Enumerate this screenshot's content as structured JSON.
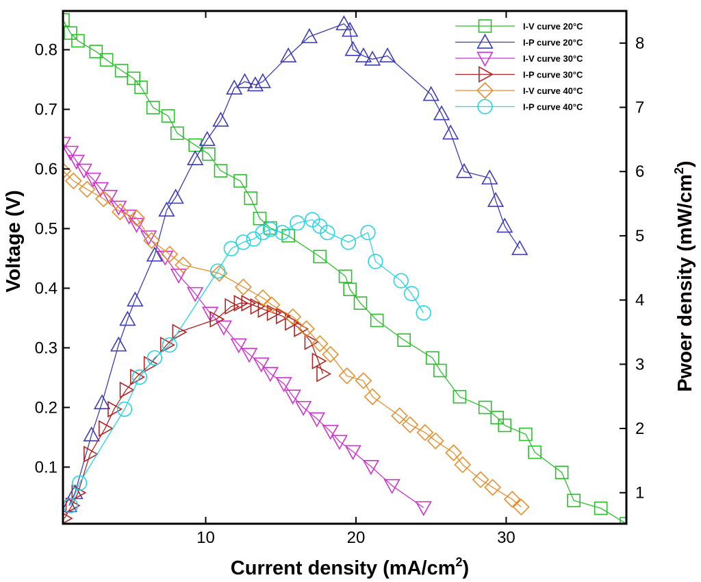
{
  "chart_data": {
    "type": "line",
    "title": "",
    "xlabel": "Current density (mA/cm",
    "xlabel_sup": "2",
    "xlabel_end": ")",
    "ylabel": "Voltage (V)",
    "y2label": "Pwoer density (mW/cm",
    "y2label_sup": "2",
    "y2label_end": ")",
    "xlim": [
      0.5,
      38
    ],
    "ylim": [
      0.005,
      0.865
    ],
    "y2lim": [
      0.517,
      8.5
    ],
    "xticks": [
      10,
      20,
      30
    ],
    "yticks": [
      0.1,
      0.2,
      0.3,
      0.4,
      0.5,
      0.6,
      0.7,
      0.8
    ],
    "y2ticks": [
      1,
      2,
      3,
      4,
      5,
      6,
      7,
      8
    ],
    "legend_position": "top-right",
    "series": [
      {
        "name": "I-V curve 20°C",
        "axis": "left",
        "color": "#27c027",
        "marker": "square",
        "x": [
          0.5,
          1.0,
          1.5,
          2.7,
          3.4,
          4.4,
          5.2,
          5.7,
          6.5,
          7.5,
          8.1,
          9.3,
          10.2,
          11.0,
          12.3,
          13.0,
          13.6,
          14.3,
          15.5,
          17.6,
          19.3,
          19.6,
          20.3,
          21.4,
          23.2,
          25.1,
          25.6,
          26.9,
          28.6,
          29.4,
          29.9,
          31.3,
          31.9,
          33.7,
          34.5,
          36.3,
          38.0
        ],
        "y": [
          0.85,
          0.828,
          0.815,
          0.797,
          0.783,
          0.765,
          0.752,
          0.737,
          0.703,
          0.689,
          0.66,
          0.64,
          0.625,
          0.597,
          0.58,
          0.551,
          0.517,
          0.501,
          0.488,
          0.453,
          0.42,
          0.398,
          0.375,
          0.346,
          0.313,
          0.283,
          0.262,
          0.218,
          0.2,
          0.183,
          0.17,
          0.155,
          0.125,
          0.091,
          0.044,
          0.031,
          0.005
        ]
      },
      {
        "name": "I-P curve  20°C",
        "axis": "right",
        "color": "#3b3bb7",
        "marker": "triangle-up",
        "x": [
          0.9,
          1.3,
          2.4,
          3.1,
          4.2,
          4.8,
          5.3,
          6.6,
          7.4,
          8.0,
          9.3,
          10.1,
          11.0,
          11.9,
          12.6,
          13.3,
          13.8,
          15.5,
          16.9,
          19.2,
          19.6,
          19.8,
          20.5,
          21.1,
          22.1,
          25.0,
          25.7,
          26.3,
          27.2,
          28.9,
          29.3,
          29.9,
          30.9
        ],
        "y": [
          0.8,
          1.0,
          1.9,
          2.4,
          3.3,
          3.7,
          4.0,
          4.7,
          5.4,
          5.6,
          6.2,
          6.5,
          6.8,
          7.3,
          7.4,
          7.35,
          7.4,
          7.8,
          8.1,
          8.3,
          8.2,
          7.9,
          7.8,
          7.75,
          7.8,
          7.2,
          6.9,
          6.6,
          6.0,
          5.9,
          5.55,
          5.15,
          4.8
        ]
      },
      {
        "name": "I-V curve 30°C",
        "axis": "left",
        "color": "#cc33cc",
        "marker": "triangle-down",
        "x": [
          0.5,
          1.0,
          1.4,
          1.9,
          2.5,
          3.0,
          3.6,
          4.2,
          4.9,
          5.4,
          6.2,
          7.3,
          8.2,
          9.3,
          10.3,
          11.2,
          12.2,
          12.9,
          13.7,
          14.3,
          15.2,
          15.8,
          16.5,
          17.4,
          18.3,
          18.9,
          19.8,
          21.0,
          22.4,
          24.5
        ],
        "y": [
          0.643,
          0.628,
          0.613,
          0.598,
          0.583,
          0.567,
          0.554,
          0.536,
          0.521,
          0.507,
          0.486,
          0.452,
          0.422,
          0.391,
          0.358,
          0.335,
          0.305,
          0.289,
          0.273,
          0.257,
          0.24,
          0.219,
          0.2,
          0.181,
          0.16,
          0.143,
          0.126,
          0.101,
          0.069,
          0.032
        ]
      },
      {
        "name": "I-P curve 30°C",
        "axis": "right",
        "color": "#b22222",
        "marker": "triangle-right",
        "x": [
          0.6,
          1.1,
          1.5,
          2.3,
          3.3,
          3.9,
          4.7,
          5.4,
          6.3,
          7.4,
          8.2,
          10.7,
          11.7,
          12.3,
          12.8,
          13.4,
          13.9,
          14.5,
          15.1,
          15.7,
          16.3,
          17.0,
          17.5,
          17.8
        ],
        "y": [
          0.6,
          0.8,
          1.0,
          1.6,
          2.0,
          2.3,
          2.6,
          2.8,
          3.0,
          3.3,
          3.5,
          3.7,
          3.9,
          3.95,
          3.95,
          3.9,
          3.85,
          3.8,
          3.75,
          3.65,
          3.55,
          3.35,
          3.05,
          2.85
        ]
      },
      {
        "name": "I-V curve 40°C",
        "axis": "left",
        "color": "#e58e2b",
        "marker": "diamond",
        "x": [
          0.5,
          1.2,
          2.1,
          3.2,
          4.3,
          5.4,
          6.4,
          7.6,
          8.5,
          10.9,
          12.5,
          13.8,
          14.4,
          15.8,
          16.7,
          17.6,
          18.3,
          19.4,
          20.5,
          21.1,
          22.9,
          23.6,
          24.6,
          25.3,
          26.5,
          27.1,
          28.3,
          29.1,
          30.4,
          31.0
        ],
        "y": [
          0.597,
          0.58,
          0.566,
          0.55,
          0.528,
          0.518,
          0.48,
          0.457,
          0.439,
          0.425,
          0.402,
          0.384,
          0.372,
          0.352,
          0.332,
          0.307,
          0.289,
          0.253,
          0.245,
          0.218,
          0.186,
          0.171,
          0.158,
          0.144,
          0.124,
          0.104,
          0.079,
          0.066,
          0.046,
          0.033
        ]
      },
      {
        "name": "I-P curve 40°C",
        "axis": "right",
        "color": "#22d4e6",
        "marker": "circle",
        "x": [
          1.0,
          1.6,
          4.6,
          5.6,
          6.6,
          7.6,
          10.8,
          11.7,
          12.5,
          13.2,
          13.8,
          14.3,
          15.1,
          16.1,
          17.1,
          17.6,
          18.1,
          19.5,
          20.8,
          21.3,
          23.0,
          23.7,
          24.5
        ],
        "y": [
          0.8,
          1.15,
          2.3,
          2.8,
          3.1,
          3.3,
          4.45,
          4.8,
          4.9,
          4.95,
          5.05,
          5.1,
          5.05,
          5.2,
          5.25,
          5.15,
          5.05,
          4.9,
          5.05,
          4.6,
          4.3,
          4.1,
          3.8
        ]
      }
    ]
  }
}
